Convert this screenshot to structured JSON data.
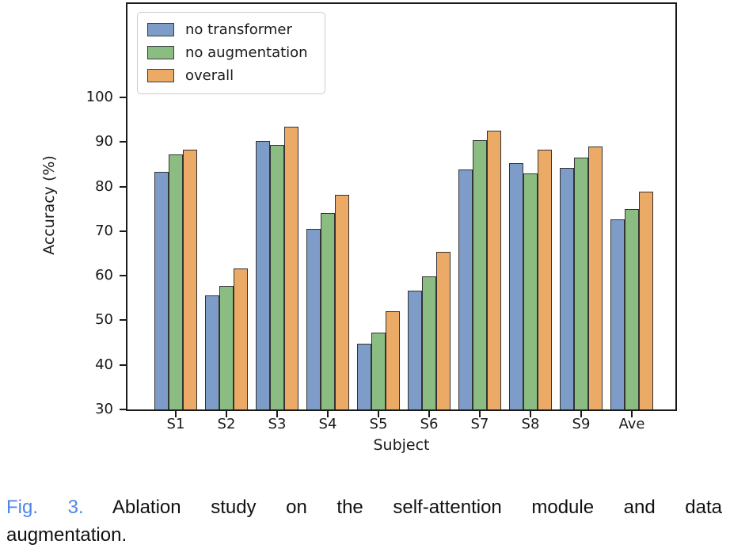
{
  "chart_data": {
    "type": "bar",
    "title": "",
    "categories": [
      "S1",
      "S2",
      "S3",
      "S4",
      "S5",
      "S6",
      "S7",
      "S8",
      "S9",
      "Ave"
    ],
    "series": [
      {
        "name": "no transformer",
        "color": "#7d9dc8",
        "values": [
          83.4,
          55.6,
          90.3,
          70.5,
          44.8,
          56.6,
          83.9,
          85.2,
          84.3,
          72.7
        ]
      },
      {
        "name": "no augmentation",
        "color": "#8bbd83",
        "values": [
          87.3,
          57.8,
          89.3,
          74.1,
          47.2,
          59.8,
          90.4,
          82.9,
          86.6,
          75.0
        ]
      },
      {
        "name": "overall",
        "color": "#ebaa65",
        "values": [
          88.3,
          61.6,
          93.5,
          78.2,
          52.1,
          65.4,
          92.5,
          88.3,
          89.0,
          78.8
        ]
      }
    ],
    "xlabel": "Subject",
    "ylabel": "Accuracy (%)",
    "ytick_values": [
      100,
      90,
      80,
      70,
      60,
      50,
      40,
      30
    ],
    "ytick_labels": [
      "100",
      "90",
      "80",
      "70",
      "60",
      "50",
      "40",
      "30"
    ],
    "ylim": [
      30,
      121
    ],
    "bar_edge_color": "#333333",
    "legend_position": "upper left",
    "grid": false
  },
  "caption": {
    "fig_label": "Fig. 3.",
    "fig_label_color": "#4d86e8",
    "line1": "Ablation study on the self-attention module and data",
    "line2": "augmentation."
  }
}
